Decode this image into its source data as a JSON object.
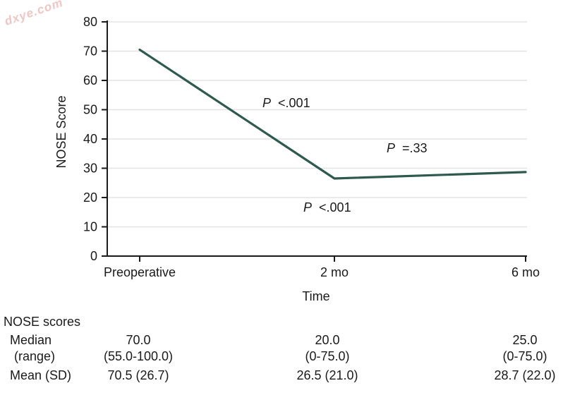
{
  "watermark": {
    "text": "dxye.com",
    "color": "#f0c6c4"
  },
  "chart_data": {
    "type": "line",
    "title": "",
    "xlabel": "Time",
    "ylabel": "NOSE Score",
    "categories": [
      "Preoperative",
      "2 mo",
      "6 mo"
    ],
    "series": [
      {
        "values": [
          70.5,
          26.5,
          28.7
        ],
        "color": "#2e594e"
      }
    ],
    "ylim": [
      0,
      80
    ],
    "yticks": [
      0,
      10,
      20,
      30,
      40,
      50,
      60,
      70,
      80
    ],
    "grid": "horizontal",
    "legend": "none",
    "annotations": [
      {
        "p": "P",
        "value": "<.001",
        "position": "between Preoperative and 2 mo, above line"
      },
      {
        "p": "P",
        "value": "=.33",
        "position": "between 2 mo and 6 mo, above line"
      },
      {
        "p": "P",
        "value": "<.001",
        "position": "below line at 2 mo"
      }
    ]
  },
  "table": {
    "header": "NOSE scores",
    "rows": [
      {
        "label": "Median",
        "values": [
          "70.0",
          "20.0",
          "25.0"
        ]
      },
      {
        "label": "(range)",
        "values": [
          "(55.0-100.0)",
          "(0-75.0)",
          "(0-75.0)"
        ]
      },
      {
        "label": "Mean (SD)",
        "values": [
          "70.5 (26.7)",
          "26.5 (21.0)",
          "28.7 (22.0)"
        ]
      }
    ]
  }
}
